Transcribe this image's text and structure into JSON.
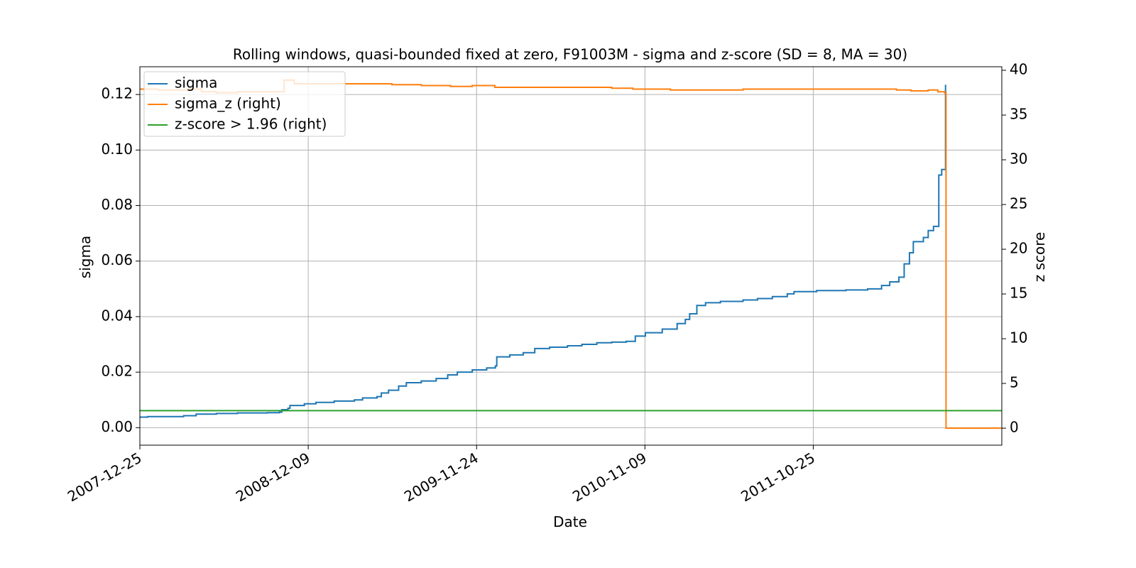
{
  "chart_data": {
    "type": "line",
    "title": "Rolling windows, quasi-bounded fixed at zero, F91003M - sigma and z-score (SD = 8, MA = 30)",
    "xlabel": "Date",
    "ylabel": "sigma",
    "ylabel_right": "z score",
    "xlim": [
      "2007-12-25",
      "2012-11-20"
    ],
    "ylim": [
      -0.0063,
      0.13
    ],
    "ylim_right": [
      -1.9,
      40.4
    ],
    "x_ticks": [
      "2007-12-25",
      "2008-12-09",
      "2009-11-24",
      "2010-11-09",
      "2011-10-25"
    ],
    "y_ticks": [
      "0.00",
      "0.02",
      "0.04",
      "0.06",
      "0.08",
      "0.10",
      "0.12"
    ],
    "y_ticks_right": [
      "0",
      "5",
      "10",
      "15",
      "20",
      "25",
      "30",
      "35",
      "40"
    ],
    "grid": true,
    "legend": "top-left",
    "series": [
      {
        "name": "sigma",
        "axis": "left",
        "color": "#1f77b4",
        "step": true,
        "points": [
          [
            "2007-12-25",
            0.0038
          ],
          [
            "2008-01-10",
            0.004
          ],
          [
            "2008-03-25",
            0.0043
          ],
          [
            "2008-04-20",
            0.0049
          ],
          [
            "2008-06-01",
            0.0051
          ],
          [
            "2008-07-15",
            0.0053
          ],
          [
            "2008-09-15",
            0.0054
          ],
          [
            "2008-10-10",
            0.0056
          ],
          [
            "2008-10-15",
            0.0065
          ],
          [
            "2008-10-28",
            0.007
          ],
          [
            "2008-11-01",
            0.008
          ],
          [
            "2008-12-01",
            0.0086
          ],
          [
            "2008-12-25",
            0.0091
          ],
          [
            "2009-02-01",
            0.0096
          ],
          [
            "2009-03-15",
            0.01
          ],
          [
            "2009-04-01",
            0.0107
          ],
          [
            "2009-05-01",
            0.0112
          ],
          [
            "2009-05-10",
            0.0125
          ],
          [
            "2009-05-25",
            0.0135
          ],
          [
            "2009-06-15",
            0.015
          ],
          [
            "2009-07-01",
            0.0162
          ],
          [
            "2009-08-01",
            0.0168
          ],
          [
            "2009-09-01",
            0.0177
          ],
          [
            "2009-09-25",
            0.019
          ],
          [
            "2009-10-15",
            0.02
          ],
          [
            "2009-11-15",
            0.0208
          ],
          [
            "2009-12-15",
            0.0215
          ],
          [
            "2010-01-02",
            0.0222
          ],
          [
            "2010-01-05",
            0.0255
          ],
          [
            "2010-02-01",
            0.0262
          ],
          [
            "2010-03-01",
            0.027
          ],
          [
            "2010-03-25",
            0.0285
          ],
          [
            "2010-04-25",
            0.029
          ],
          [
            "2010-06-01",
            0.0295
          ],
          [
            "2010-07-01",
            0.03
          ],
          [
            "2010-08-01",
            0.0306
          ],
          [
            "2010-09-01",
            0.0308
          ],
          [
            "2010-10-01",
            0.0311
          ],
          [
            "2010-10-20",
            0.033
          ],
          [
            "2010-11-10",
            0.0342
          ],
          [
            "2010-12-15",
            0.0355
          ],
          [
            "2011-01-15",
            0.0375
          ],
          [
            "2011-02-01",
            0.039
          ],
          [
            "2011-02-10",
            0.041
          ],
          [
            "2011-02-25",
            0.044
          ],
          [
            "2011-03-15",
            0.045
          ],
          [
            "2011-04-15",
            0.0455
          ],
          [
            "2011-06-01",
            0.046
          ],
          [
            "2011-07-01",
            0.0465
          ],
          [
            "2011-08-01",
            0.0472
          ],
          [
            "2011-09-01",
            0.0482
          ],
          [
            "2011-09-15",
            0.049
          ],
          [
            "2011-11-01",
            0.0494
          ],
          [
            "2012-01-01",
            0.0496
          ],
          [
            "2012-02-15",
            0.05
          ],
          [
            "2012-03-15",
            0.0512
          ],
          [
            "2012-04-01",
            0.0525
          ],
          [
            "2012-04-20",
            0.0542
          ],
          [
            "2012-05-01",
            0.059
          ],
          [
            "2012-05-12",
            0.063
          ],
          [
            "2012-05-20",
            0.067
          ],
          [
            "2012-06-10",
            0.0685
          ],
          [
            "2012-06-20",
            0.071
          ],
          [
            "2012-07-01",
            0.0725
          ],
          [
            "2012-07-12",
            0.091
          ],
          [
            "2012-07-18",
            0.093
          ],
          [
            "2012-07-26",
            0.1235
          ]
        ]
      },
      {
        "name": "sigma_z (right)",
        "axis": "right",
        "color": "#ff7f0e",
        "step": true,
        "points": [
          [
            "2007-12-25",
            37.9
          ],
          [
            "2008-02-01",
            37.8
          ],
          [
            "2008-04-01",
            37.9
          ],
          [
            "2008-05-01",
            37.6
          ],
          [
            "2008-06-01",
            37.5
          ],
          [
            "2008-07-15",
            37.6
          ],
          [
            "2008-10-15",
            37.6
          ],
          [
            "2008-10-20",
            38.9
          ],
          [
            "2008-11-10",
            38.5
          ],
          [
            "2009-01-01",
            38.5
          ],
          [
            "2009-04-01",
            38.5
          ],
          [
            "2009-05-01",
            38.5
          ],
          [
            "2009-06-01",
            38.4
          ],
          [
            "2009-08-01",
            38.3
          ],
          [
            "2009-10-01",
            38.2
          ],
          [
            "2009-11-15",
            38.3
          ],
          [
            "2010-01-01",
            38.1
          ],
          [
            "2010-03-01",
            38.1
          ],
          [
            "2010-06-01",
            38.1
          ],
          [
            "2010-09-01",
            38.0
          ],
          [
            "2010-10-15",
            37.9
          ],
          [
            "2011-01-01",
            37.8
          ],
          [
            "2011-03-01",
            37.8
          ],
          [
            "2011-06-01",
            37.9
          ],
          [
            "2011-09-01",
            37.9
          ],
          [
            "2011-12-01",
            37.9
          ],
          [
            "2012-01-01",
            37.9
          ],
          [
            "2012-04-01",
            37.9
          ],
          [
            "2012-04-15",
            37.8
          ],
          [
            "2012-05-15",
            37.7
          ],
          [
            "2012-06-20",
            37.8
          ],
          [
            "2012-07-10",
            37.6
          ],
          [
            "2012-07-24",
            37.5
          ],
          [
            "2012-07-27",
            0
          ],
          [
            "2012-11-20",
            0
          ]
        ]
      },
      {
        "name": "z-score > 1.96 (right)",
        "axis": "right",
        "color": "#2ca02c",
        "step": false,
        "points": [
          [
            "2007-12-25",
            1.96
          ],
          [
            "2012-11-20",
            1.96
          ]
        ]
      }
    ]
  }
}
